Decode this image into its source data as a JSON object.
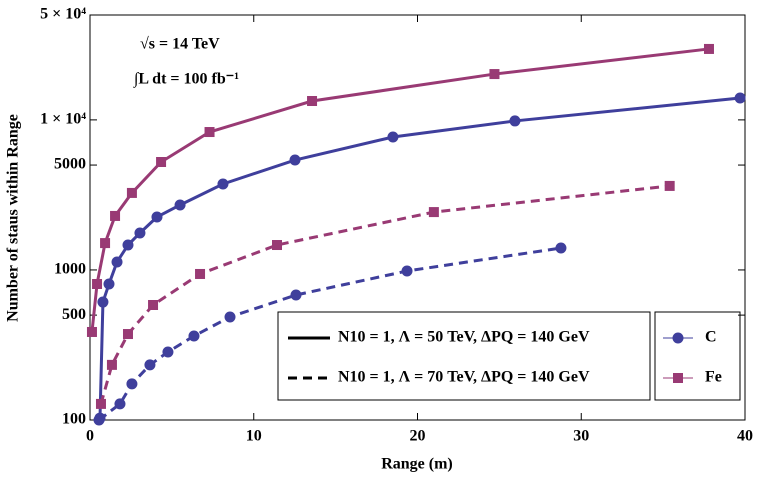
{
  "chart_data": {
    "type": "line",
    "x_label": "Range (m)",
    "y_label": "Number of staus within Range",
    "annotations": [
      "√s = 14 TeV",
      "∫L dt = 100 fb⁻¹"
    ],
    "xlim": [
      0,
      40
    ],
    "xticks": [
      0,
      10,
      20,
      30,
      40
    ],
    "ylim": [
      100,
      50000
    ],
    "log_y": true,
    "yticks": [
      100,
      500,
      1000,
      5000,
      {
        "value": 10000,
        "label": "1 × 10⁴"
      },
      {
        "value": 50000,
        "label": "5 × 10⁴"
      }
    ],
    "line_legend": [
      {
        "label": "N10 = 1, Λ = 50 TeV, ΔPQ = 140 GeV",
        "dashed": false
      },
      {
        "label": "N10 = 1, Λ = 70 TeV, ΔPQ = 140 GeV",
        "dashed": true
      }
    ],
    "series": [
      {
        "name": "Fe",
        "color": "#993a74",
        "marker": "square",
        "dashed": false,
        "x": [
          0.12,
          0.43,
          0.92,
          1.53,
          2.56,
          4.34,
          7.3,
          13.56,
          24.7,
          37.8
        ],
        "values": [
          386,
          806,
          1510,
          2290,
          3260,
          5240,
          8300,
          13360,
          20200,
          29700
        ]
      },
      {
        "name": "C",
        "color": "#3f3f9c",
        "marker": "circle",
        "dashed": false,
        "x": [
          0.61,
          0.79,
          1.16,
          1.65,
          2.32,
          3.05,
          4.09,
          5.5,
          8.12,
          12.52,
          18.5,
          25.95,
          39.7
        ],
        "values": [
          103,
          611,
          806,
          1130,
          1466,
          1763,
          2253,
          2710,
          3740,
          5400,
          7690,
          9840,
          13990
        ]
      },
      {
        "name": "Fe",
        "color": "#993a74",
        "marker": "square",
        "dashed": true,
        "x": [
          0.67,
          1.34,
          2.32,
          3.85,
          6.72,
          11.42,
          21.0,
          35.4
        ],
        "values": [
          128,
          233,
          374,
          584,
          940,
          1466,
          2430,
          3630
        ]
      },
      {
        "name": "C",
        "color": "#3f3f9c",
        "marker": "circle",
        "dashed": true,
        "x": [
          0.55,
          1.83,
          2.56,
          3.66,
          4.76,
          6.35,
          8.55,
          12.58,
          19.36,
          28.76
        ],
        "values": [
          100,
          128,
          174,
          233,
          284,
          363,
          486,
          681,
          984,
          1400
        ]
      }
    ],
    "marker_legend": [
      1,
      0
    ]
  }
}
